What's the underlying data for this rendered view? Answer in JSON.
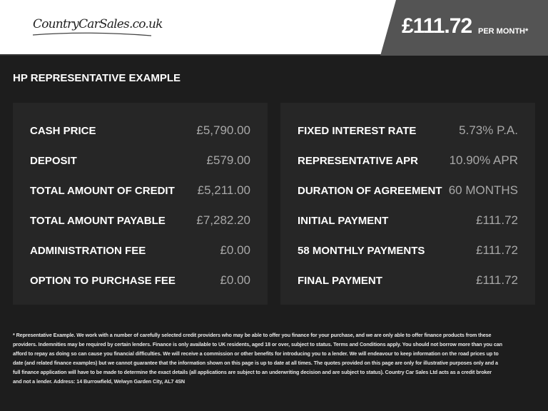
{
  "header": {
    "logo_text": "CountryCarSales.co.uk",
    "price": "£111.72",
    "per_month": "PER MONTH*"
  },
  "title": "HP REPRESENTATIVE EXAMPLE",
  "left": [
    {
      "label": "CASH PRICE",
      "value": "£5,790.00"
    },
    {
      "label": "DEPOSIT",
      "value": "£579.00"
    },
    {
      "label": "TOTAL AMOUNT OF CREDIT",
      "value": "£5,211.00"
    },
    {
      "label": "TOTAL AMOUNT PAYABLE",
      "value": "£7,282.20"
    },
    {
      "label": "ADMINISTRATION FEE",
      "value": "£0.00"
    },
    {
      "label": "OPTION TO PURCHASE FEE",
      "value": "£0.00"
    }
  ],
  "right": [
    {
      "label": "FIXED INTEREST RATE",
      "value": "5.73% P.A."
    },
    {
      "label": "REPRESENTATIVE APR",
      "value": "10.90% APR"
    },
    {
      "label": "DURATION OF AGREEMENT",
      "value": "60 MONTHS"
    },
    {
      "label": "INITIAL PAYMENT",
      "value": "£111.72"
    },
    {
      "label": "58 MONTHLY PAYMENTS",
      "value": "£111.72"
    },
    {
      "label": "FINAL PAYMENT",
      "value": "£111.72"
    }
  ],
  "footer_lines": [
    "* Representative Example. We work with a number of carefully selected credit providers who may be able to offer you finance for your purchase, and we are only able to offer finance products from these",
    "providers. Indemnities may be required by certain lenders. Finance is only available to UK residents, aged 18 or over, subject to status. Terms and Conditions apply. You should not borrow more than you can",
    "afford to repay as doing so can cause you financial difficulties. We will receive a commission or other benefits for introducing you to a lender. We will endeavour to keep information on the road prices up to",
    "date (and related finance examples) but we cannot guarantee that the information shown on this page is up to date at all times. The quotes provided on this page are only for illustrative purposes only and a",
    "full finance application will have to be made to determine the exact details (all applications are subject to an underwriting decision and are subject to status). Country Car Sales Ltd acts as a credit broker",
    "and not a lender. Address: 14 Burrowfield, Welwyn Garden City,  AL7 4SN"
  ]
}
